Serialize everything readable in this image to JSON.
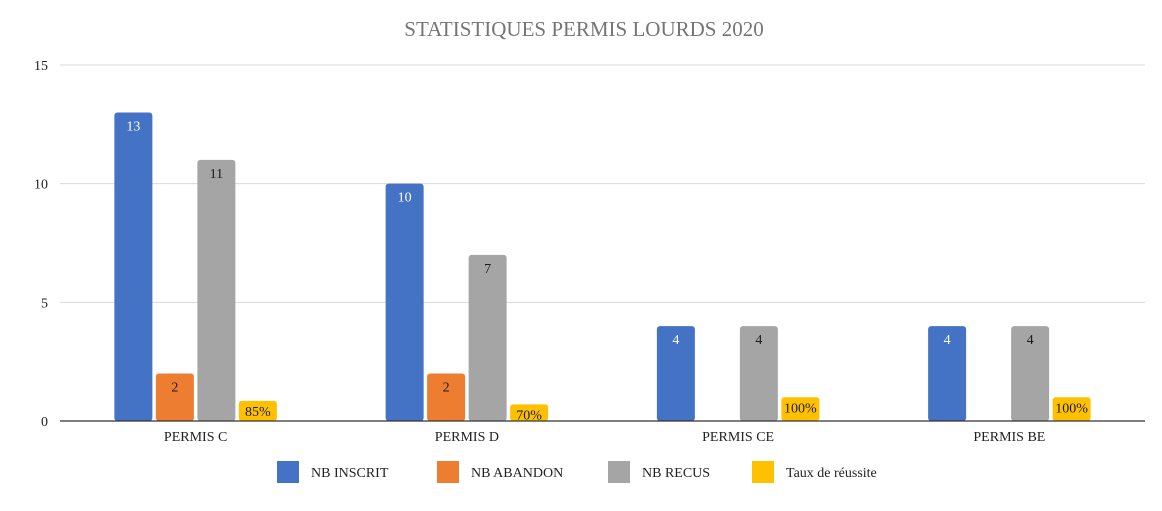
{
  "chart_data": {
    "type": "bar",
    "title": "STATISTIQUES PERMIS LOURDS 2020",
    "categories": [
      "PERMIS C",
      "PERMIS D",
      "PERMIS CE",
      "PERMIS BE"
    ],
    "ylim": [
      0,
      15
    ],
    "yticks": [
      "0",
      "5",
      "10",
      "15"
    ],
    "grid": true,
    "legend_position": "bottom",
    "series": [
      {
        "name": "NB INSCRIT",
        "color": "#4472C4",
        "values": [
          13,
          10,
          4,
          4
        ],
        "labels": [
          "13",
          "10",
          "4",
          "4"
        ]
      },
      {
        "name": "NB ABANDON",
        "color": "#ED7D31",
        "values": [
          2,
          2,
          null,
          null
        ],
        "labels": [
          "2",
          "2",
          "",
          ""
        ]
      },
      {
        "name": "NB RECUS",
        "color": "#A5A5A5",
        "values": [
          11,
          7,
          4,
          4
        ],
        "labels": [
          "11",
          "7",
          "4",
          "4"
        ]
      },
      {
        "name": "Taux de réussite",
        "color": "#FFC000",
        "values": [
          0.85,
          0.7,
          1.0,
          1.0
        ],
        "labels": [
          "85%",
          "70%",
          "100%",
          "100%"
        ]
      }
    ]
  }
}
